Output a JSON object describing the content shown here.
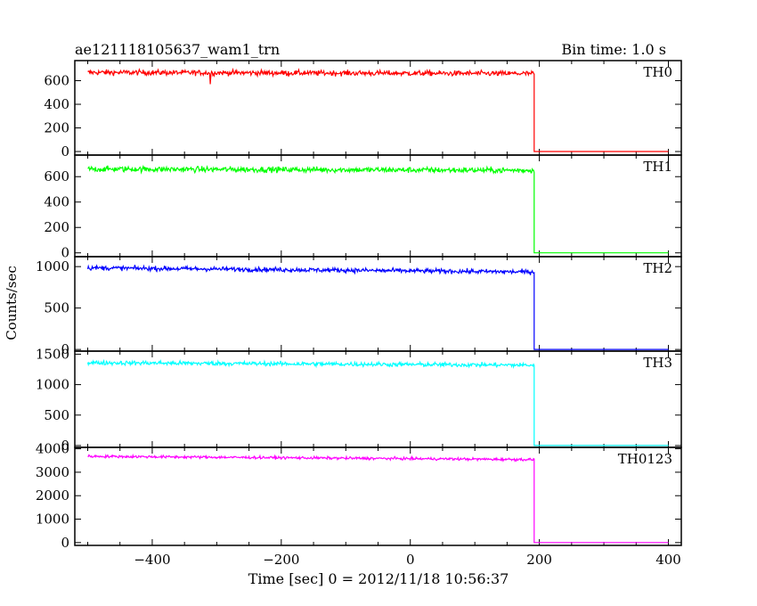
{
  "header": {
    "title": "ae121118105637_wam1_trn",
    "bin_time": "Bin time: 1.0 s"
  },
  "axes": {
    "xlabel": "Time [sec] 0 = 2012/11/18 10:56:37",
    "ylabel": "Counts/sec"
  },
  "chart_data": {
    "type": "line",
    "title": "ae121118105637_wam1_trn",
    "xlabel": "Time [sec] 0 = 2012/11/18 10:56:37",
    "ylabel": "Counts/sec",
    "xlim": [
      -520,
      420
    ],
    "x_ticks": [
      -400,
      -200,
      0,
      200,
      400
    ],
    "x_tick_labels": [
      "−400",
      "−200",
      "0",
      "200",
      "400"
    ],
    "x_minor_step": 50,
    "grid": false,
    "bin_time_s": 1.0,
    "panels": [
      {
        "label": "TH0",
        "color": "#ff0000",
        "ylim": [
          -30,
          770
        ],
        "y_ticks": [
          0,
          200,
          400,
          600
        ],
        "y_tick_labels": [
          "0",
          "200",
          "400",
          "600"
        ],
        "x_start": -500,
        "x_drop": 192,
        "x_end": 400,
        "level_start": 670,
        "level_end": 660,
        "level_after": 0,
        "noise_sd": 22,
        "dip_at": -310,
        "dip_value": 570
      },
      {
        "label": "TH1",
        "color": "#00ff00",
        "ylim": [
          -30,
          770
        ],
        "y_ticks": [
          0,
          200,
          400,
          600
        ],
        "y_tick_labels": [
          "0",
          "200",
          "400",
          "600"
        ],
        "x_start": -500,
        "x_drop": 192,
        "x_end": 400,
        "level_start": 660,
        "level_end": 650,
        "level_after": 0,
        "noise_sd": 22
      },
      {
        "label": "TH2",
        "color": "#0000ff",
        "ylim": [
          -20,
          1120
        ],
        "y_ticks": [
          0,
          500,
          1000
        ],
        "y_tick_labels": [
          "0",
          "500",
          "1000"
        ],
        "x_start": -500,
        "x_drop": 192,
        "x_end": 400,
        "level_start": 985,
        "level_end": 935,
        "level_after": 0,
        "noise_sd": 27
      },
      {
        "label": "TH3",
        "color": "#00ffff",
        "ylim": [
          -30,
          1550
        ],
        "y_ticks": [
          0,
          500,
          1000,
          1500
        ],
        "y_tick_labels": [
          "0",
          "500",
          "1000",
          "1500"
        ],
        "x_start": -500,
        "x_drop": 192,
        "x_end": 400,
        "level_start": 1360,
        "level_end": 1320,
        "level_after": 0,
        "noise_sd": 35
      },
      {
        "label": "TH0123",
        "color": "#ff00ff",
        "ylim": [
          -120,
          4060
        ],
        "y_ticks": [
          0,
          1000,
          2000,
          3000,
          4000
        ],
        "y_tick_labels": [
          "0",
          "1000",
          "2000",
          "3000",
          "4000"
        ],
        "x_start": -500,
        "x_drop": 192,
        "x_end": 400,
        "level_start": 3680,
        "level_end": 3540,
        "level_after": 0,
        "noise_sd": 55
      }
    ]
  }
}
